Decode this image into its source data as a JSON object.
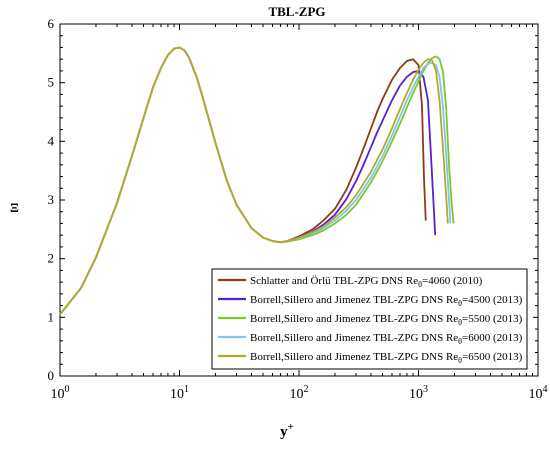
{
  "chart_data": {
    "type": "line",
    "title": "TBL-ZPG",
    "xlabel": "y",
    "xlabel_sup": "+",
    "ylabel": "Ξ",
    "x_scale": "log",
    "xlim": [
      1,
      10000
    ],
    "ylim": [
      0,
      6
    ],
    "x_ticks": [
      {
        "value": 1,
        "base": "10",
        "exp": "0"
      },
      {
        "value": 10,
        "base": "10",
        "exp": "1"
      },
      {
        "value": 100,
        "base": "10",
        "exp": "2"
      },
      {
        "value": 1000,
        "base": "10",
        "exp": "3"
      },
      {
        "value": 10000,
        "base": "10",
        "exp": "4"
      }
    ],
    "y_ticks": [
      "0",
      "1",
      "2",
      "3",
      "4",
      "5",
      "6"
    ],
    "grid": false,
    "legend_position": "bottom-right",
    "series": [
      {
        "name": "Schlatter and Örlü TBL-ZPG DNS Reθ=4060 (2010)",
        "label_before": "Schlatter and Örlü TBL-ZPG DNS Re",
        "label_sub": "θ",
        "label_after": "=4060 (2010)",
        "color": "#8b3a1a",
        "x": [
          1,
          1.5,
          2,
          3,
          4,
          5,
          6,
          7,
          8,
          9,
          10,
          11,
          12,
          14,
          16,
          20,
          25,
          30,
          40,
          50,
          60,
          70,
          80,
          100,
          130,
          160,
          200,
          250,
          300,
          350,
          400,
          450,
          500,
          600,
          700,
          800,
          900,
          1000,
          1070,
          1110,
          1150
        ],
        "y": [
          1.05,
          1.5,
          2.02,
          2.95,
          3.75,
          4.4,
          4.92,
          5.25,
          5.47,
          5.58,
          5.6,
          5.55,
          5.43,
          5.08,
          4.68,
          3.97,
          3.32,
          2.92,
          2.52,
          2.36,
          2.3,
          2.28,
          2.3,
          2.38,
          2.5,
          2.65,
          2.85,
          3.18,
          3.55,
          3.9,
          4.22,
          4.5,
          4.72,
          5.05,
          5.25,
          5.37,
          5.4,
          5.3,
          4.6,
          3.4,
          2.65
        ]
      },
      {
        "name": "Borrell,Sillero and Jimenez TBL-ZPG DNS Reθ=4500 (2013)",
        "label_before": "Borrell,Sillero and Jimenez TBL-ZPG DNS Re",
        "label_sub": "θ",
        "label_after": "=4500 (2013)",
        "color": "#5a1fd1",
        "x": [
          1,
          1.5,
          2,
          3,
          4,
          5,
          6,
          7,
          8,
          9,
          10,
          11,
          12,
          14,
          16,
          20,
          25,
          30,
          40,
          50,
          60,
          70,
          80,
          100,
          130,
          160,
          200,
          250,
          300,
          350,
          400,
          450,
          500,
          600,
          700,
          800,
          900,
          1000,
          1100,
          1200,
          1300,
          1380
        ],
        "y": [
          1.05,
          1.5,
          2.02,
          2.95,
          3.75,
          4.4,
          4.92,
          5.25,
          5.47,
          5.58,
          5.6,
          5.55,
          5.43,
          5.08,
          4.68,
          3.97,
          3.32,
          2.92,
          2.52,
          2.36,
          2.3,
          2.28,
          2.3,
          2.36,
          2.46,
          2.58,
          2.75,
          3.02,
          3.32,
          3.62,
          3.9,
          4.15,
          4.35,
          4.7,
          4.95,
          5.1,
          5.18,
          5.2,
          5.1,
          4.7,
          3.4,
          2.4
        ]
      },
      {
        "name": "Borrell,Sillero and Jimenez TBL-ZPG DNS Reθ=5500 (2013)",
        "label_before": "Borrell,Sillero and Jimenez TBL-ZPG DNS Re",
        "label_sub": "θ",
        "label_after": "=5500 (2013)",
        "color": "#7cc62e",
        "x": [
          1,
          1.5,
          2,
          3,
          4,
          5,
          6,
          7,
          8,
          9,
          10,
          11,
          12,
          14,
          16,
          20,
          25,
          30,
          40,
          50,
          60,
          70,
          80,
          100,
          130,
          160,
          200,
          250,
          300,
          400,
          500,
          600,
          700,
          800,
          900,
          1000,
          1100,
          1200,
          1300,
          1400,
          1500,
          1600,
          1700,
          1800,
          1900,
          1970
        ],
        "y": [
          1.05,
          1.5,
          2.02,
          2.95,
          3.75,
          4.4,
          4.92,
          5.25,
          5.47,
          5.58,
          5.6,
          5.55,
          5.43,
          5.08,
          4.68,
          3.97,
          3.32,
          2.92,
          2.52,
          2.36,
          2.3,
          2.28,
          2.29,
          2.33,
          2.4,
          2.48,
          2.6,
          2.75,
          2.92,
          3.3,
          3.66,
          4.0,
          4.3,
          4.58,
          4.82,
          5.02,
          5.2,
          5.33,
          5.42,
          5.45,
          5.4,
          5.2,
          4.6,
          3.6,
          2.9,
          2.6
        ]
      },
      {
        "name": "Borrell,Sillero and Jimenez TBL-ZPG DNS Reθ=6000 (2013)",
        "label_before": "Borrell,Sillero and Jimenez TBL-ZPG DNS Re",
        "label_sub": "θ",
        "label_after": "=6000 (2013)",
        "color": "#7ec8ea",
        "x": [
          1,
          1.5,
          2,
          3,
          4,
          5,
          6,
          7,
          8,
          9,
          10,
          11,
          12,
          14,
          16,
          20,
          25,
          30,
          40,
          50,
          60,
          70,
          80,
          100,
          130,
          160,
          200,
          250,
          300,
          400,
          500,
          600,
          700,
          800,
          900,
          1000,
          1100,
          1200,
          1300,
          1400,
          1500,
          1600,
          1700,
          1800,
          1850
        ],
        "y": [
          1.05,
          1.5,
          2.02,
          2.95,
          3.75,
          4.4,
          4.92,
          5.25,
          5.47,
          5.58,
          5.6,
          5.55,
          5.43,
          5.08,
          4.68,
          3.97,
          3.32,
          2.92,
          2.52,
          2.36,
          2.3,
          2.28,
          2.3,
          2.35,
          2.43,
          2.52,
          2.65,
          2.82,
          3.0,
          3.38,
          3.75,
          4.1,
          4.42,
          4.7,
          4.92,
          5.1,
          5.25,
          5.32,
          5.34,
          5.3,
          5.1,
          4.6,
          3.8,
          3.0,
          2.6
        ]
      },
      {
        "name": "Borrell,Sillero and Jimenez TBL-ZPG DNS Reθ=6500 (2013)",
        "label_before": "Borrell,Sillero and Jimenez TBL-ZPG DNS Re",
        "label_sub": "θ",
        "label_after": "=6500 (2013)",
        "color": "#b5a82a",
        "x": [
          1,
          1.5,
          2,
          3,
          4,
          5,
          6,
          7,
          8,
          9,
          10,
          11,
          12,
          14,
          16,
          20,
          25,
          30,
          40,
          50,
          60,
          70,
          80,
          100,
          130,
          160,
          200,
          250,
          300,
          400,
          500,
          600,
          700,
          800,
          900,
          1000,
          1100,
          1200,
          1300,
          1400,
          1500,
          1600,
          1700,
          1760
        ],
        "y": [
          1.05,
          1.5,
          2.02,
          2.95,
          3.75,
          4.4,
          4.92,
          5.25,
          5.47,
          5.58,
          5.6,
          5.55,
          5.43,
          5.08,
          4.68,
          3.97,
          3.32,
          2.92,
          2.52,
          2.36,
          2.3,
          2.28,
          2.3,
          2.36,
          2.45,
          2.55,
          2.7,
          2.88,
          3.08,
          3.48,
          3.86,
          4.22,
          4.55,
          4.82,
          5.05,
          5.22,
          5.34,
          5.4,
          5.38,
          5.2,
          4.7,
          3.9,
          3.1,
          2.6
        ]
      }
    ]
  }
}
